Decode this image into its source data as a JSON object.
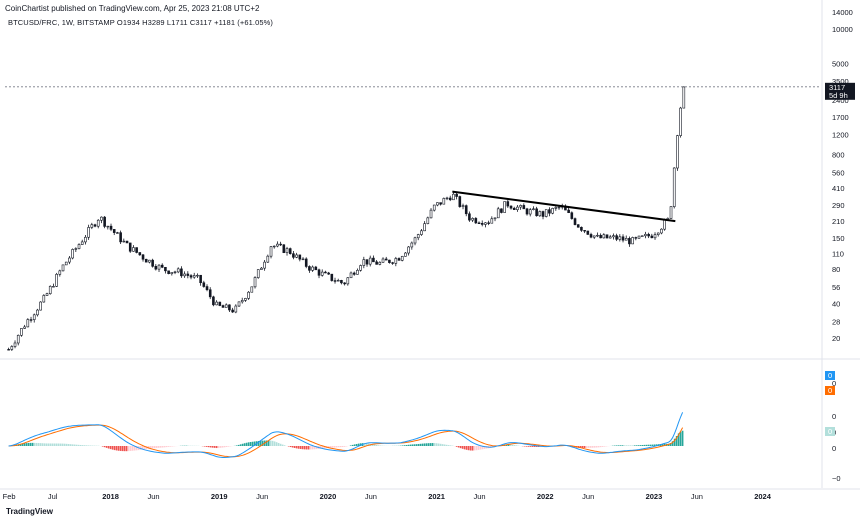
{
  "header": {
    "publish_line": "CoinChartist published on TradingView.com, Apr 25, 2023 21:08 UTC+2",
    "symbol_line": "BTCUSD/FRC, 1W, BITSTAMP  O1934  H3289  L1711  C3117  +1181 (+61.05%)"
  },
  "footer": {
    "logo_text": "TradingView"
  },
  "colors": {
    "candle": "#131722",
    "trendline": "#000000",
    "macd": "#2196f3",
    "signal": "#ff6d00",
    "hist_pos_strong": "#26a69a",
    "hist_pos_weak": "#b2dfdb",
    "hist_neg_strong": "#ef5350",
    "hist_neg_weak": "#ffcdd2",
    "price_tag": "#131722"
  },
  "chart_data": {
    "type": "candlestick",
    "price_scale": "log",
    "price_axis_ticks": [
      "14000",
      "10000",
      "5000",
      "3500",
      "2400",
      "1700",
      "1200",
      "800",
      "560",
      "410",
      "290",
      "210",
      "150",
      "110",
      "80",
      "56",
      "40",
      "28",
      "20"
    ],
    "current_price_label": "3117",
    "countdown_label": "5d 9h",
    "x_axis_ticks": [
      "Feb",
      "Jul",
      "2018",
      "Jun",
      "2019",
      "Jun",
      "2020",
      "Jun",
      "2021",
      "Jun",
      "2022",
      "Jun",
      "2023",
      "Jun",
      "2024"
    ],
    "ohlc": {
      "open": 1934,
      "high": 3289,
      "low": 1711,
      "close": 3117,
      "change": "+1181 (+61.05%)"
    },
    "price_path": [
      [
        "2017-02",
        16
      ],
      [
        "2017-04",
        28
      ],
      [
        "2017-06",
        45
      ],
      [
        "2017-08",
        85
      ],
      [
        "2017-10",
        140
      ],
      [
        "2017-12",
        230
      ],
      [
        "2018-01",
        190
      ],
      [
        "2018-03",
        130
      ],
      [
        "2018-05",
        100
      ],
      [
        "2018-07",
        80
      ],
      [
        "2018-09",
        75
      ],
      [
        "2018-11",
        65
      ],
      [
        "2019-01",
        38
      ],
      [
        "2019-03",
        35
      ],
      [
        "2019-05",
        60
      ],
      [
        "2019-07",
        130
      ],
      [
        "2019-09",
        115
      ],
      [
        "2019-11",
        85
      ],
      [
        "2020-01",
        70
      ],
      [
        "2020-03",
        60
      ],
      [
        "2020-05",
        95
      ],
      [
        "2020-07",
        90
      ],
      [
        "2020-09",
        100
      ],
      [
        "2020-11",
        150
      ],
      [
        "2021-01",
        280
      ],
      [
        "2021-03",
        360
      ],
      [
        "2021-05",
        220
      ],
      [
        "2021-07",
        210
      ],
      [
        "2021-09",
        300
      ],
      [
        "2021-11",
        260
      ],
      [
        "2022-01",
        240
      ],
      [
        "2022-03",
        280
      ],
      [
        "2022-05",
        190
      ],
      [
        "2022-07",
        150
      ],
      [
        "2022-09",
        150
      ],
      [
        "2022-11",
        140
      ],
      [
        "2023-01",
        160
      ],
      [
        "2023-03",
        220
      ],
      [
        "2023-03-20",
        800
      ],
      [
        "2023-04-01",
        1700
      ],
      [
        "2023-04-20",
        3117
      ]
    ],
    "trendline": [
      [
        "2021-03",
        380
      ],
      [
        "2023-03-20",
        210
      ]
    ],
    "macd_axis_ticks": [
      "0",
      "0",
      "0",
      "0",
      "−0"
    ],
    "macd_value_tags": [
      "0",
      "0",
      "0"
    ],
    "indicator": "MACD"
  }
}
